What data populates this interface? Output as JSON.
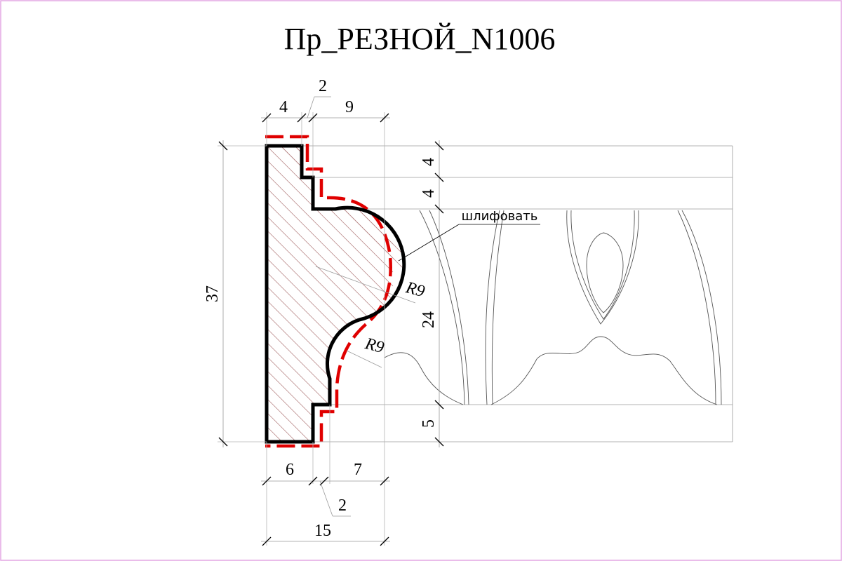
{
  "title": "Пр_РЕЗНОЙ_N1006",
  "note": "шлифовать",
  "dimensions": {
    "top_left": "4",
    "top_step": "2",
    "top_right": "9",
    "height_total": "37",
    "right_band_1": "4",
    "right_band_2": "4",
    "right_middle": "24",
    "right_bottom": "5",
    "bottom_left": "6",
    "bottom_right": "7",
    "bottom_step": "2",
    "width_total": "15",
    "radius_upper": "R9",
    "radius_lower": "R9"
  },
  "colors": {
    "profile": "#000000",
    "cut_line": "#e00000",
    "frame": "#e3a6e3",
    "hatch": "#b07a7a"
  }
}
